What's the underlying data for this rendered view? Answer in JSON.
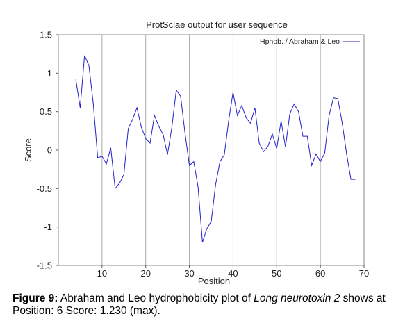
{
  "chart_data": {
    "type": "line",
    "title": "ProtSclae output for user sequence",
    "xlabel": "Position",
    "ylabel": "Score",
    "xlim": [
      0,
      70
    ],
    "ylim": [
      -1.5,
      1.5
    ],
    "x_ticks": [
      10,
      20,
      30,
      40,
      50,
      60,
      70
    ],
    "y_ticks": [
      1.5,
      1,
      0.5,
      0,
      -0.5,
      -1,
      -1.5
    ],
    "grid": "vertical",
    "legend_position": "top-right",
    "series": [
      {
        "name": "Hphob.  /  Abraham & Leo",
        "color": "#2020cc",
        "x": [
          4,
          5,
          6,
          7,
          8,
          9,
          10,
          11,
          12,
          13,
          14,
          15,
          16,
          17,
          18,
          19,
          20,
          21,
          22,
          23,
          24,
          25,
          26,
          27,
          28,
          29,
          30,
          31,
          32,
          33,
          34,
          35,
          36,
          37,
          38,
          39,
          40,
          41,
          42,
          43,
          44,
          45,
          46,
          47,
          48,
          49,
          50,
          51,
          52,
          53,
          54,
          55,
          56,
          57,
          58,
          59,
          60,
          61,
          62,
          63,
          64,
          65,
          66,
          67,
          68
        ],
        "y": [
          0.92,
          0.55,
          1.23,
          1.1,
          0.6,
          -0.1,
          -0.08,
          -0.18,
          0.03,
          -0.5,
          -0.43,
          -0.32,
          0.28,
          0.4,
          0.55,
          0.3,
          0.15,
          0.09,
          0.45,
          0.31,
          0.2,
          -0.06,
          0.3,
          0.78,
          0.7,
          0.22,
          -0.2,
          -0.15,
          -0.48,
          -1.2,
          -1.02,
          -0.93,
          -0.45,
          -0.15,
          -0.06,
          0.38,
          0.75,
          0.45,
          0.58,
          0.42,
          0.35,
          0.55,
          0.09,
          -0.02,
          0.05,
          0.21,
          0.02,
          0.38,
          0.04,
          0.47,
          0.6,
          0.5,
          0.18,
          0.18,
          -0.2,
          -0.05,
          -0.15,
          -0.04,
          0.45,
          0.68,
          0.67,
          0.35,
          -0.05,
          -0.38,
          -0.38
        ]
      }
    ]
  },
  "caption": {
    "label": "Figure 9:",
    "text_before": " Abraham and Leo hydrophobicity plot of ",
    "italic": "Long neurotoxin 2",
    "text_after": " shows at Position: 6 Score: 1.230 (max)."
  }
}
